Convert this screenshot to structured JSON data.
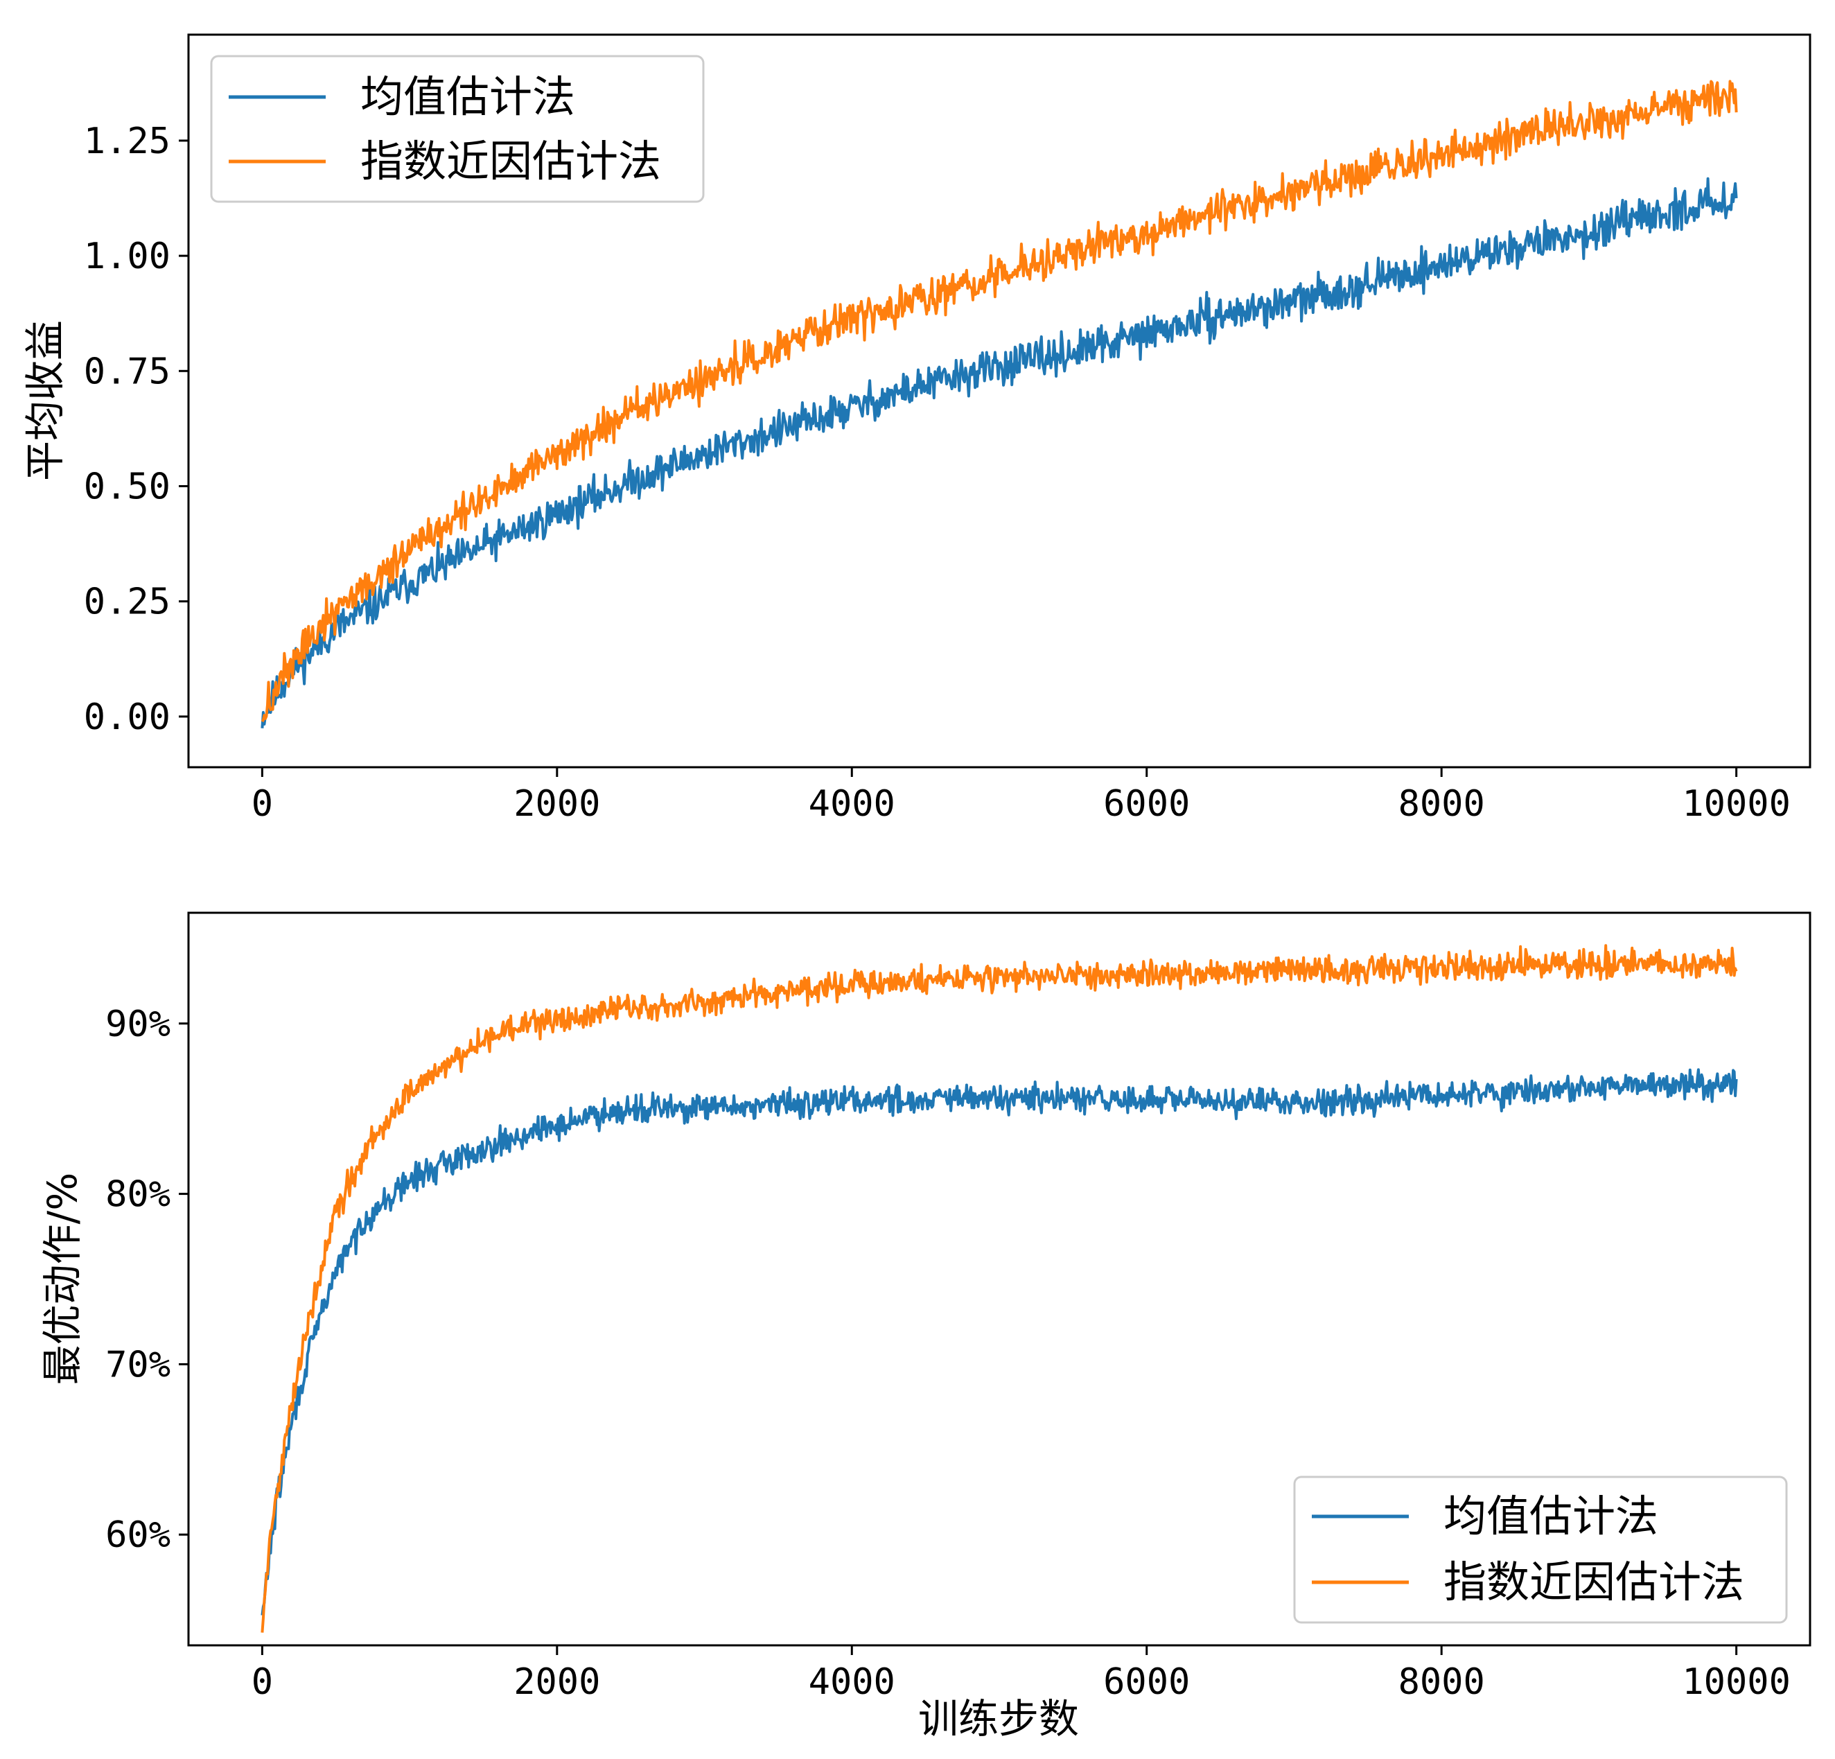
{
  "chart_data": [
    {
      "type": "line",
      "ylabel": "平均收益",
      "xlabel": "",
      "xlim": [
        -500,
        10500
      ],
      "ylim": [
        -0.11,
        1.48
      ],
      "xticks": [
        0,
        2000,
        4000,
        6000,
        8000,
        10000
      ],
      "xtick_labels": [
        "0",
        "2000",
        "4000",
        "6000",
        "8000",
        "10000"
      ],
      "yticks": [
        0.0,
        0.25,
        0.5,
        0.75,
        1.0,
        1.25
      ],
      "ytick_labels": [
        "0.00",
        "0.25",
        "0.50",
        "0.75",
        "1.00",
        "1.25"
      ],
      "legend_location": "upper-left",
      "x": [
        0,
        200,
        500,
        1000,
        1500,
        2000,
        2500,
        3000,
        3500,
        4000,
        4500,
        5000,
        5500,
        6000,
        6500,
        7000,
        7500,
        8000,
        8500,
        9000,
        9500,
        10000
      ],
      "series": [
        {
          "name": "均值估计法",
          "color": "#1f77b4",
          "values": [
            0.0,
            0.1,
            0.19,
            0.29,
            0.37,
            0.44,
            0.51,
            0.57,
            0.62,
            0.67,
            0.72,
            0.76,
            0.79,
            0.83,
            0.87,
            0.9,
            0.94,
            0.98,
            1.02,
            1.05,
            1.09,
            1.13
          ]
        },
        {
          "name": "指数近因估计法",
          "color": "#ff7f0e",
          "values": [
            0.0,
            0.12,
            0.23,
            0.36,
            0.47,
            0.57,
            0.66,
            0.73,
            0.8,
            0.86,
            0.91,
            0.96,
            1.01,
            1.05,
            1.1,
            1.14,
            1.18,
            1.22,
            1.26,
            1.29,
            1.32,
            1.35
          ]
        }
      ]
    },
    {
      "type": "line",
      "ylabel": "最优动作/%",
      "xlabel": "训练步数",
      "xlim": [
        -500,
        10500
      ],
      "ylim": [
        53.5,
        96.5
      ],
      "xticks": [
        0,
        2000,
        4000,
        6000,
        8000,
        10000
      ],
      "xtick_labels": [
        "0",
        "2000",
        "4000",
        "6000",
        "8000",
        "10000"
      ],
      "yticks": [
        60,
        70,
        80,
        90
      ],
      "ytick_labels": [
        "60%",
        "70%",
        "80%",
        "90%"
      ],
      "legend_location": "lower-right",
      "x": [
        0,
        50,
        100,
        200,
        300,
        400,
        500,
        700,
        1000,
        1300,
        1600,
        2000,
        2400,
        3000,
        4000,
        5000,
        6000,
        7000,
        8000,
        9000,
        10000
      ],
      "series": [
        {
          "name": "均值估计法",
          "color": "#1f77b4",
          "values": [
            55.0,
            59.0,
            62.0,
            66.5,
            70.0,
            73.0,
            75.5,
            78.5,
            80.8,
            82.0,
            83.0,
            84.0,
            85.0,
            85.0,
            85.5,
            85.6,
            85.5,
            85.4,
            85.8,
            86.2,
            86.6
          ]
        },
        {
          "name": "指数近因估计法",
          "color": "#ff7f0e",
          "values": [
            54.5,
            59.5,
            62.5,
            67.5,
            72.0,
            75.5,
            79.0,
            82.5,
            86.0,
            88.0,
            89.5,
            90.2,
            90.8,
            91.3,
            92.3,
            92.8,
            92.9,
            93.1,
            93.3,
            93.5,
            93.6
          ]
        }
      ]
    }
  ]
}
